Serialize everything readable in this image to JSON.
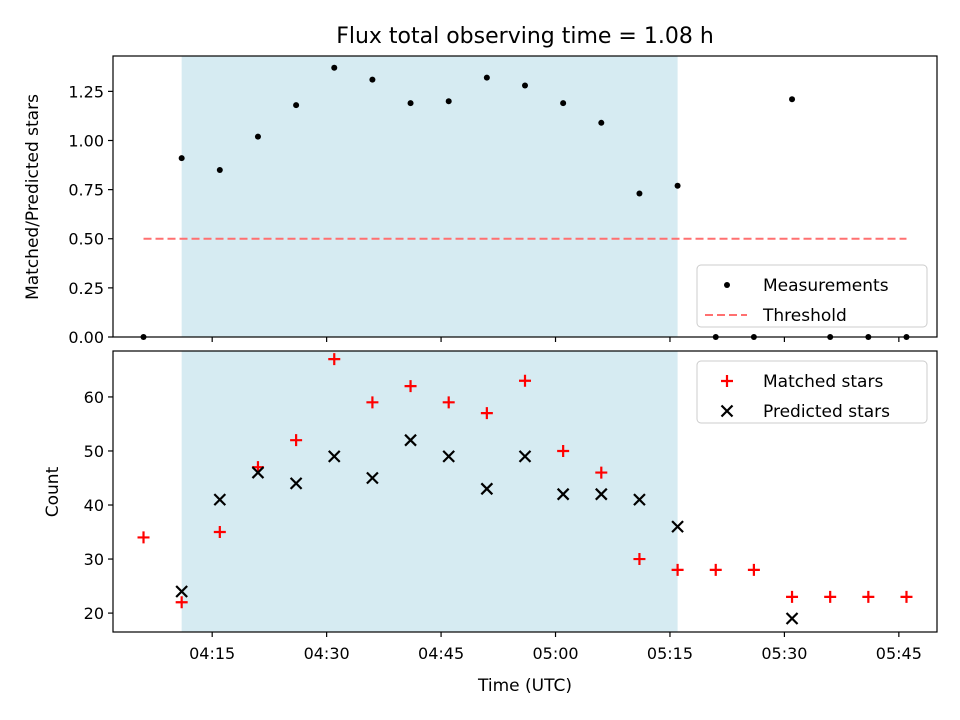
{
  "chart_data": [
    {
      "type": "scatter",
      "title": "Flux total observing time = 1.08 h",
      "xlabel": "",
      "ylabel": "Matched/Predicted stars",
      "ylim": [
        0,
        1.43
      ],
      "yticks": [
        "0.00",
        "0.25",
        "0.50",
        "0.75",
        "1.00",
        "1.25"
      ],
      "xlim": [
        "04:02",
        "05:50"
      ],
      "shaded_region": {
        "x0": "04:11",
        "x1": "05:16",
        "color": "#add8e6"
      },
      "series": [
        {
          "name": "Measurements",
          "color": "#000000",
          "marker": "dot",
          "x": [
            "04:06",
            "04:11",
            "04:16",
            "04:21",
            "04:26",
            "04:31",
            "04:36",
            "04:41",
            "04:46",
            "04:51",
            "04:56",
            "05:01",
            "05:06",
            "05:11",
            "05:16",
            "05:21",
            "05:26",
            "05:31",
            "05:36",
            "05:41",
            "05:46"
          ],
          "y": [
            0.0,
            0.91,
            0.85,
            1.02,
            1.18,
            1.37,
            1.31,
            1.19,
            1.2,
            1.32,
            1.28,
            1.19,
            1.09,
            0.73,
            0.77,
            0.0,
            0.0,
            1.21,
            0.0,
            0.0,
            0.0
          ]
        },
        {
          "name": "Threshold",
          "color": "#ff7070",
          "style": "dashed",
          "x": [
            "04:06",
            "05:46"
          ],
          "y": [
            0.5,
            0.5
          ]
        }
      ],
      "legend": "bottom-right"
    },
    {
      "type": "scatter",
      "title": "",
      "xlabel": "Time (UTC)",
      "ylabel": "Count",
      "ylim": [
        16.5,
        68.5
      ],
      "yticks": [
        "20",
        "30",
        "40",
        "50",
        "60"
      ],
      "xlim": [
        "04:02",
        "05:50"
      ],
      "xticks": [
        "04:15",
        "04:30",
        "04:45",
        "05:00",
        "05:15",
        "05:30",
        "05:45"
      ],
      "shaded_region": {
        "x0": "04:11",
        "x1": "05:16",
        "color": "#add8e6"
      },
      "series": [
        {
          "name": "Matched stars",
          "color": "#ff0000",
          "marker": "plus",
          "x": [
            "04:06",
            "04:11",
            "04:16",
            "04:21",
            "04:26",
            "04:31",
            "04:36",
            "04:41",
            "04:46",
            "04:51",
            "04:56",
            "05:01",
            "05:06",
            "05:11",
            "05:16",
            "05:21",
            "05:26",
            "05:31",
            "05:36",
            "05:41",
            "05:46"
          ],
          "y": [
            34,
            22,
            35,
            47,
            52,
            67,
            59,
            62,
            59,
            57,
            63,
            50,
            46,
            30,
            28,
            28,
            28,
            23,
            23,
            23,
            23
          ]
        },
        {
          "name": "Predicted stars",
          "color": "#000000",
          "marker": "x",
          "x": [
            "04:11",
            "04:16",
            "04:21",
            "04:26",
            "04:31",
            "04:36",
            "04:41",
            "04:46",
            "04:51",
            "04:56",
            "05:01",
            "05:06",
            "05:11",
            "05:16",
            "05:31"
          ],
          "y": [
            24,
            41,
            46,
            44,
            49,
            45,
            52,
            49,
            43,
            49,
            42,
            42,
            41,
            36,
            19
          ]
        }
      ],
      "legend": "top-right"
    }
  ]
}
